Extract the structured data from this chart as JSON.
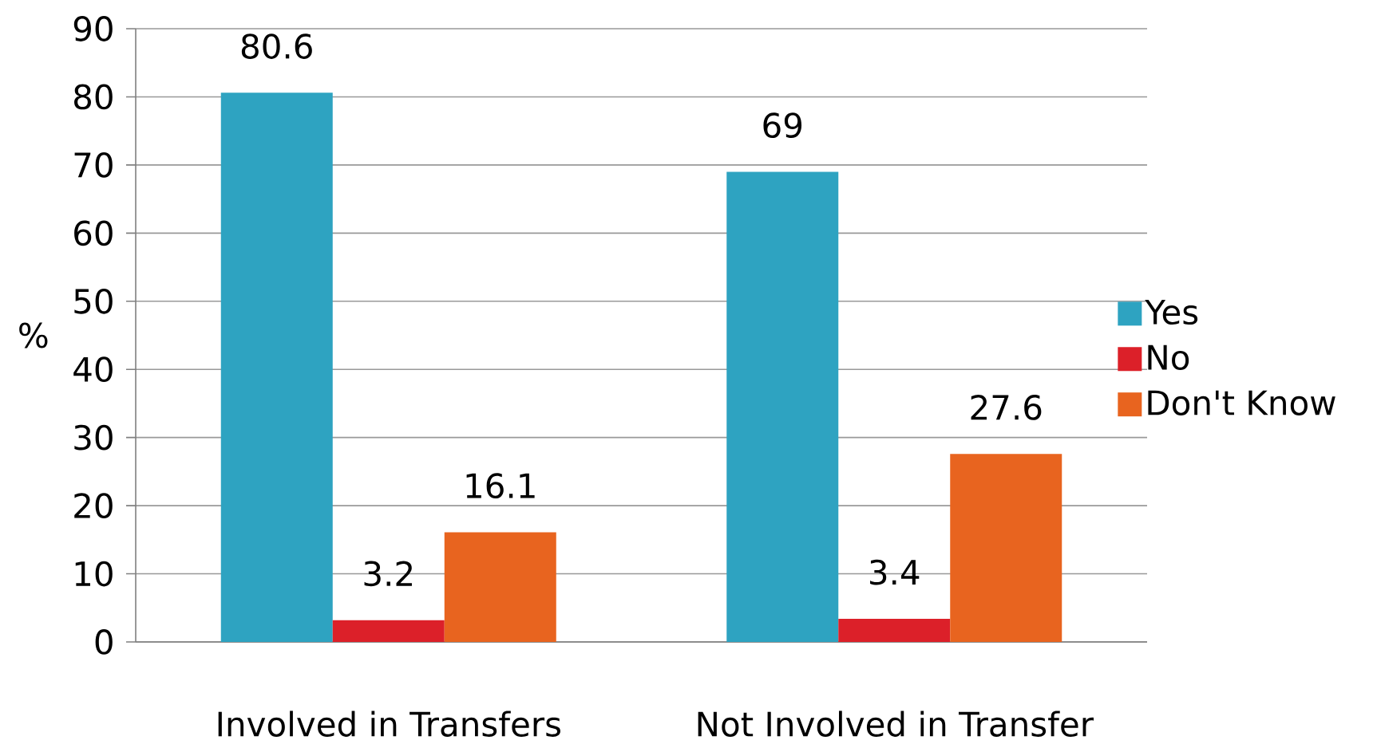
{
  "chart_data": {
    "type": "bar",
    "ylabel": "%",
    "categories": [
      "Involved in Transfers",
      "Not Involved in Transfer"
    ],
    "series": [
      {
        "name": "Yes",
        "color": "#2ea3c1",
        "values": [
          80.6,
          69
        ]
      },
      {
        "name": "No",
        "color": "#dc2029",
        "values": [
          3.2,
          3.4
        ]
      },
      {
        "name": "Don't Know",
        "color": "#e8641f",
        "values": [
          16.1,
          27.6
        ]
      }
    ],
    "ylim": [
      0,
      90
    ],
    "yticks": [
      0,
      10,
      20,
      30,
      40,
      50,
      60,
      70,
      80,
      90
    ],
    "grid": "y",
    "legend": "right",
    "data_labels": true
  }
}
